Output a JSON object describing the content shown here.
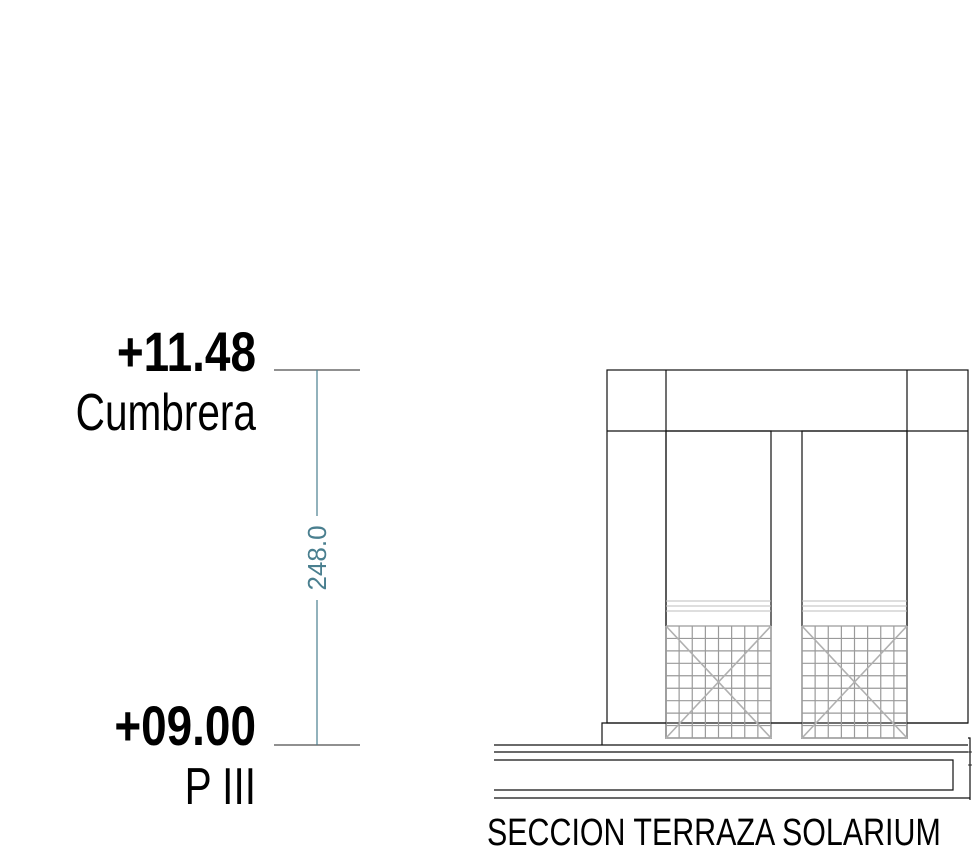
{
  "levels": [
    {
      "value": "+11.48",
      "name": "Cumbrera"
    },
    {
      "value": "+09.00",
      "name": "P III"
    }
  ],
  "dimension": {
    "value": "248.0"
  },
  "section_title": "SECCION TERRAZA SOLARIUM",
  "colors": {
    "dimension": "#4a7f8f",
    "lines": "#111111",
    "hatch": "#9a9a9a"
  }
}
